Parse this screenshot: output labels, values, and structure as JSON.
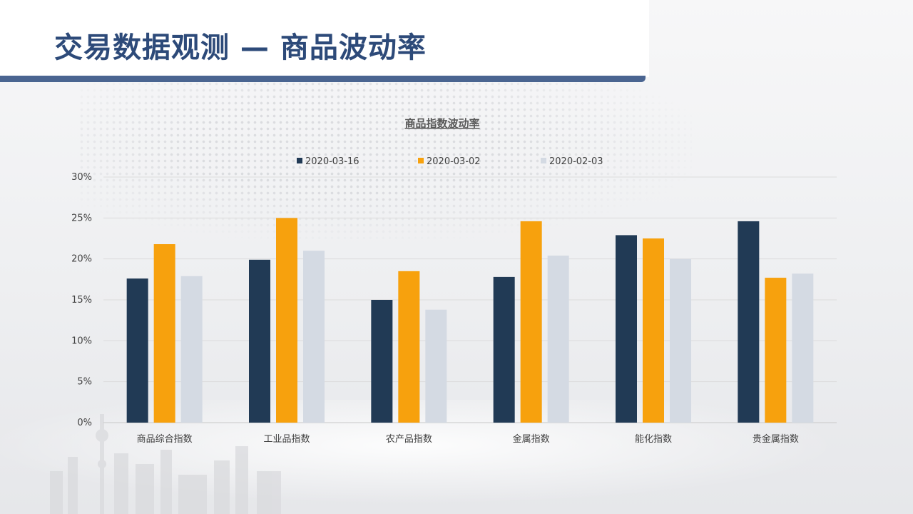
{
  "slide": {
    "title": "交易数据观测 — 商品波动率"
  },
  "colors": {
    "title": "#2d4a79",
    "header_bar": "#4a6591",
    "series": [
      "#213a55",
      "#f7a10d",
      "#d4dae3"
    ]
  },
  "chart_data": {
    "type": "bar",
    "title": "商品指数波动率",
    "xlabel": "",
    "ylabel": "",
    "ylim": [
      0,
      30
    ],
    "yticks": [
      0,
      5,
      10,
      15,
      20,
      25,
      30
    ],
    "ytick_labels": [
      "0%",
      "5%",
      "10%",
      "15%",
      "20%",
      "25%",
      "30%"
    ],
    "grid": true,
    "legend_position": "top",
    "categories": [
      "商品综合指数",
      "工业品指数",
      "农产品指数",
      "金属指数",
      "能化指数",
      "贵金属指数"
    ],
    "series": [
      {
        "name": "2020-03-16",
        "values": [
          17.6,
          19.9,
          15.0,
          17.8,
          22.9,
          24.6
        ]
      },
      {
        "name": "2020-03-02",
        "values": [
          21.8,
          25.0,
          18.5,
          24.6,
          22.5,
          17.7
        ]
      },
      {
        "name": "2020-02-03",
        "values": [
          17.9,
          21.0,
          13.8,
          20.4,
          20.0,
          18.2
        ]
      }
    ]
  }
}
